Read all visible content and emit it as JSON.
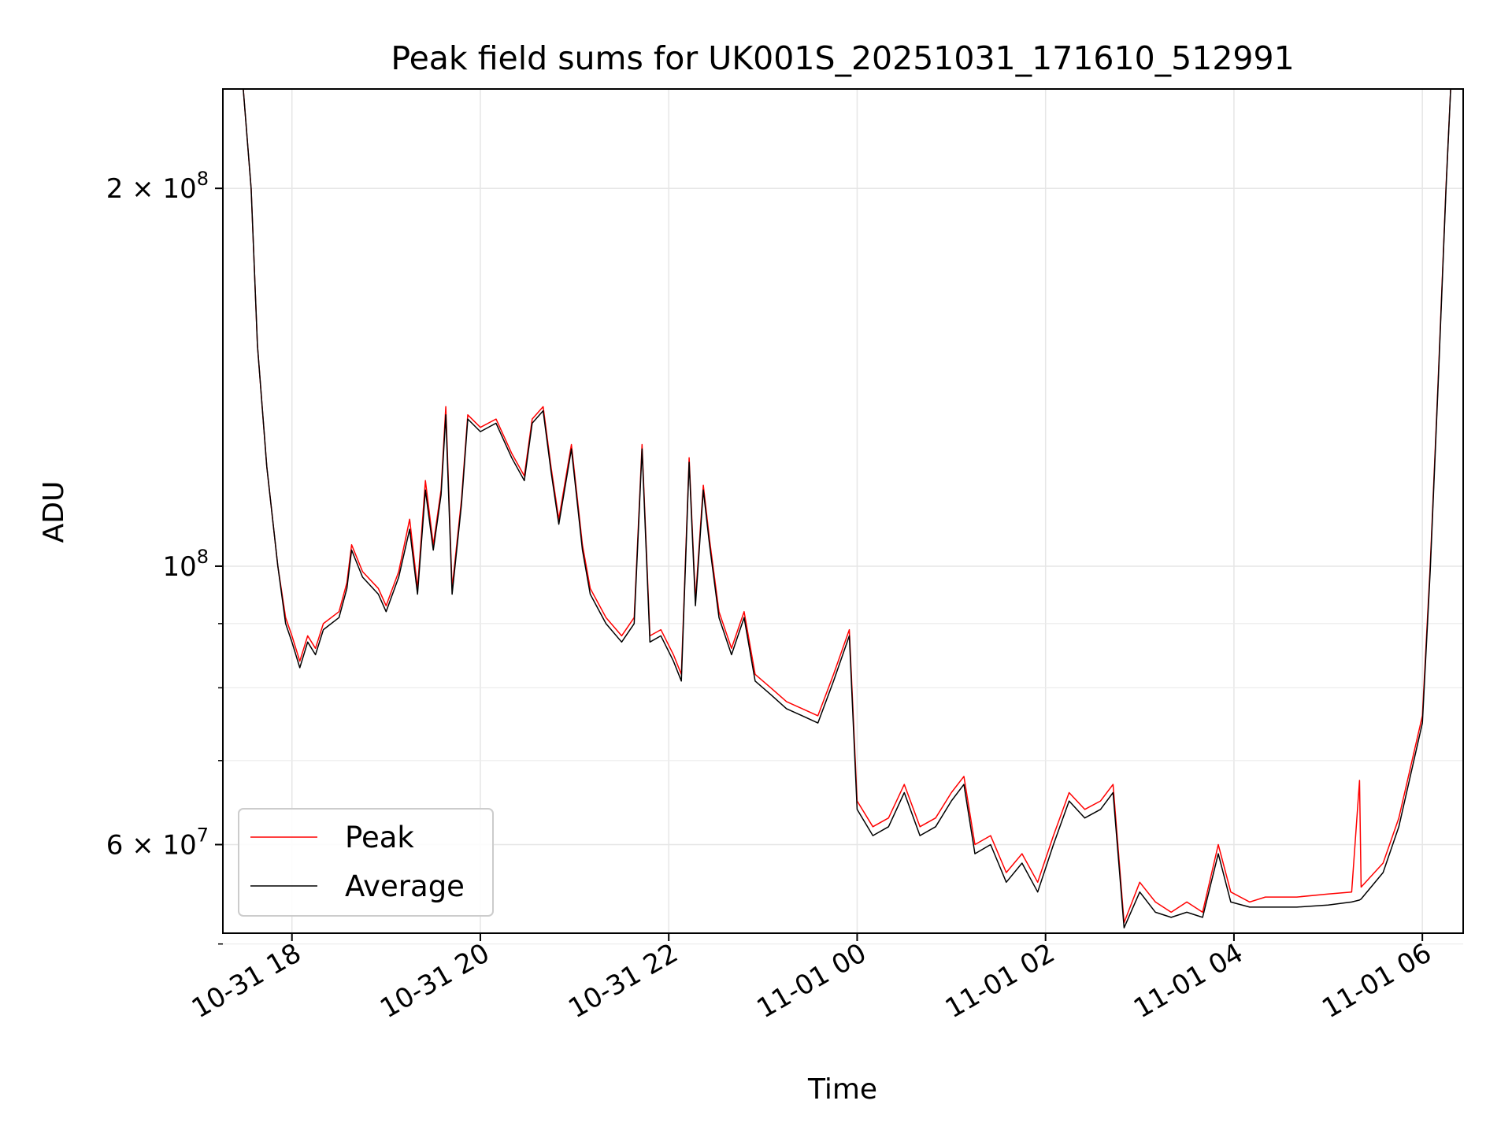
{
  "chart_data": {
    "type": "line",
    "title": "Peak field sums for UK001S_20251031_171610_512991",
    "xlabel": "Time",
    "ylabel": "ADU",
    "y_scale": "log",
    "xlim": [
      "2025-10-31 17:16",
      "2025-11-01 06:26"
    ],
    "ylim": [
      51000000,
      240000000
    ],
    "grid": true,
    "legend_position": "lower-left",
    "x_ticks": [
      {
        "value": "2025-10-31 18:00",
        "label": "10-31 18"
      },
      {
        "value": "2025-10-31 20:00",
        "label": "10-31 20"
      },
      {
        "value": "2025-10-31 22:00",
        "label": "10-31 22"
      },
      {
        "value": "2025-11-01 00:00",
        "label": "11-01 00"
      },
      {
        "value": "2025-11-01 02:00",
        "label": "11-01 02"
      },
      {
        "value": "2025-11-01 04:00",
        "label": "11-01 04"
      },
      {
        "value": "2025-11-01 06:00",
        "label": "11-01 06"
      }
    ],
    "y_major_ticks": [
      {
        "value": 200000000,
        "label_base": "2 × 10",
        "label_exp": "8"
      },
      {
        "value": 100000000,
        "label_base": "10",
        "label_exp": "8"
      },
      {
        "value": 60000000,
        "label_base": "6 × 10",
        "label_exp": "7"
      }
    ],
    "y_minor_ticks": [
      90000000,
      80000000,
      70000000,
      50000000
    ],
    "series": [
      {
        "name": "Peak",
        "color": "#ff0000",
        "points": [
          [
            "2025-10-31 17:16",
            240000000
          ],
          [
            "2025-10-31 17:29",
            240000000
          ],
          [
            "2025-10-31 17:34",
            200000000
          ],
          [
            "2025-10-31 17:38",
            150000000
          ],
          [
            "2025-10-31 17:44",
            120000000
          ],
          [
            "2025-10-31 17:51",
            100000000
          ],
          [
            "2025-10-31 17:56",
            91000000
          ],
          [
            "2025-10-31 18:00",
            88000000
          ],
          [
            "2025-10-31 18:05",
            84000000
          ],
          [
            "2025-10-31 18:10",
            88000000
          ],
          [
            "2025-10-31 18:15",
            86000000
          ],
          [
            "2025-10-31 18:20",
            90000000
          ],
          [
            "2025-10-31 18:30",
            92000000
          ],
          [
            "2025-10-31 18:35",
            97000000
          ],
          [
            "2025-10-31 18:38",
            104000000
          ],
          [
            "2025-10-31 18:45",
            99000000
          ],
          [
            "2025-10-31 18:55",
            96000000
          ],
          [
            "2025-10-31 19:00",
            93000000
          ],
          [
            "2025-10-31 19:08",
            99000000
          ],
          [
            "2025-10-31 19:15",
            109000000
          ],
          [
            "2025-10-31 19:20",
            96000000
          ],
          [
            "2025-10-31 19:25",
            117000000
          ],
          [
            "2025-10-31 19:30",
            104000000
          ],
          [
            "2025-10-31 19:35",
            115000000
          ],
          [
            "2025-10-31 19:38",
            134000000
          ],
          [
            "2025-10-31 19:42",
            96000000
          ],
          [
            "2025-10-31 19:48",
            113000000
          ],
          [
            "2025-10-31 19:52",
            132000000
          ],
          [
            "2025-10-31 20:00",
            129000000
          ],
          [
            "2025-10-31 20:10",
            131000000
          ],
          [
            "2025-10-31 20:20",
            123000000
          ],
          [
            "2025-10-31 20:28",
            118000000
          ],
          [
            "2025-10-31 20:33",
            131000000
          ],
          [
            "2025-10-31 20:40",
            134000000
          ],
          [
            "2025-10-31 20:45",
            120000000
          ],
          [
            "2025-10-31 20:50",
            109000000
          ],
          [
            "2025-10-31 20:58",
            125000000
          ],
          [
            "2025-10-31 21:05",
            104000000
          ],
          [
            "2025-10-31 21:10",
            96000000
          ],
          [
            "2025-10-31 21:20",
            91000000
          ],
          [
            "2025-10-31 21:30",
            88000000
          ],
          [
            "2025-10-31 21:38",
            91000000
          ],
          [
            "2025-10-31 21:43",
            125000000
          ],
          [
            "2025-10-31 21:48",
            88000000
          ],
          [
            "2025-10-31 21:55",
            89000000
          ],
          [
            "2025-10-31 22:03",
            85000000
          ],
          [
            "2025-10-31 22:08",
            82000000
          ],
          [
            "2025-10-31 22:13",
            122000000
          ],
          [
            "2025-10-31 22:17",
            94000000
          ],
          [
            "2025-10-31 22:22",
            116000000
          ],
          [
            "2025-10-31 22:26",
            105000000
          ],
          [
            "2025-10-31 22:32",
            92000000
          ],
          [
            "2025-10-31 22:40",
            86000000
          ],
          [
            "2025-10-31 22:48",
            92000000
          ],
          [
            "2025-10-31 22:55",
            82000000
          ],
          [
            "2025-10-31 23:05",
            80000000
          ],
          [
            "2025-10-31 23:15",
            78000000
          ],
          [
            "2025-10-31 23:25",
            77000000
          ],
          [
            "2025-10-31 23:35",
            76000000
          ],
          [
            "2025-10-31 23:45",
            82000000
          ],
          [
            "2025-10-31 23:55",
            89000000
          ],
          [
            "2025-11-01 00:00",
            65000000
          ],
          [
            "2025-11-01 00:10",
            62000000
          ],
          [
            "2025-11-01 00:20",
            63000000
          ],
          [
            "2025-11-01 00:30",
            67000000
          ],
          [
            "2025-11-01 00:40",
            62000000
          ],
          [
            "2025-11-01 00:50",
            63000000
          ],
          [
            "2025-11-01 01:00",
            66000000
          ],
          [
            "2025-11-01 01:08",
            68000000
          ],
          [
            "2025-11-01 01:15",
            60000000
          ],
          [
            "2025-11-01 01:25",
            61000000
          ],
          [
            "2025-11-01 01:35",
            57000000
          ],
          [
            "2025-11-01 01:45",
            59000000
          ],
          [
            "2025-11-01 01:55",
            56000000
          ],
          [
            "2025-11-01 02:05",
            61000000
          ],
          [
            "2025-11-01 02:15",
            66000000
          ],
          [
            "2025-11-01 02:25",
            64000000
          ],
          [
            "2025-11-01 02:35",
            65000000
          ],
          [
            "2025-11-01 02:43",
            67000000
          ],
          [
            "2025-11-01 02:50",
            52000000
          ],
          [
            "2025-11-01 03:00",
            56000000
          ],
          [
            "2025-11-01 03:10",
            54000000
          ],
          [
            "2025-11-01 03:20",
            53000000
          ],
          [
            "2025-11-01 03:30",
            54000000
          ],
          [
            "2025-11-01 03:40",
            53000000
          ],
          [
            "2025-11-01 03:50",
            60000000
          ],
          [
            "2025-11-01 03:58",
            55000000
          ],
          [
            "2025-11-01 04:10",
            54000000
          ],
          [
            "2025-11-01 04:20",
            54500000
          ],
          [
            "2025-11-01 04:40",
            54500000
          ],
          [
            "2025-11-01 05:00",
            54800000
          ],
          [
            "2025-11-01 05:15",
            55000000
          ],
          [
            "2025-11-01 05:20",
            67500000
          ],
          [
            "2025-11-01 05:21",
            55500000
          ],
          [
            "2025-11-01 05:35",
            58000000
          ],
          [
            "2025-11-01 05:45",
            63000000
          ],
          [
            "2025-11-01 06:00",
            76000000
          ],
          [
            "2025-11-01 06:05",
            100000000
          ],
          [
            "2025-11-01 06:10",
            140000000
          ],
          [
            "2025-11-01 06:15",
            200000000
          ],
          [
            "2025-11-01 06:18",
            240000000
          ],
          [
            "2025-11-01 06:26",
            240000000
          ]
        ]
      },
      {
        "name": "Average",
        "color": "#000000",
        "points": [
          [
            "2025-10-31 17:16",
            240000000
          ],
          [
            "2025-10-31 17:29",
            240000000
          ],
          [
            "2025-10-31 17:34",
            200000000
          ],
          [
            "2025-10-31 17:38",
            150000000
          ],
          [
            "2025-10-31 17:44",
            120000000
          ],
          [
            "2025-10-31 17:51",
            100000000
          ],
          [
            "2025-10-31 17:56",
            90000000
          ],
          [
            "2025-10-31 18:00",
            87000000
          ],
          [
            "2025-10-31 18:05",
            83000000
          ],
          [
            "2025-10-31 18:10",
            87000000
          ],
          [
            "2025-10-31 18:15",
            85000000
          ],
          [
            "2025-10-31 18:20",
            89000000
          ],
          [
            "2025-10-31 18:30",
            91000000
          ],
          [
            "2025-10-31 18:35",
            96000000
          ],
          [
            "2025-10-31 18:38",
            103000000
          ],
          [
            "2025-10-31 18:45",
            98000000
          ],
          [
            "2025-10-31 18:55",
            95000000
          ],
          [
            "2025-10-31 19:00",
            92000000
          ],
          [
            "2025-10-31 19:08",
            98000000
          ],
          [
            "2025-10-31 19:15",
            107000000
          ],
          [
            "2025-10-31 19:20",
            95000000
          ],
          [
            "2025-10-31 19:25",
            115000000
          ],
          [
            "2025-10-31 19:30",
            103000000
          ],
          [
            "2025-10-31 19:35",
            114000000
          ],
          [
            "2025-10-31 19:38",
            132000000
          ],
          [
            "2025-10-31 19:42",
            95000000
          ],
          [
            "2025-10-31 19:48",
            112000000
          ],
          [
            "2025-10-31 19:52",
            131000000
          ],
          [
            "2025-10-31 20:00",
            128000000
          ],
          [
            "2025-10-31 20:10",
            130000000
          ],
          [
            "2025-10-31 20:20",
            122000000
          ],
          [
            "2025-10-31 20:28",
            117000000
          ],
          [
            "2025-10-31 20:33",
            130000000
          ],
          [
            "2025-10-31 20:40",
            133000000
          ],
          [
            "2025-10-31 20:45",
            119000000
          ],
          [
            "2025-10-31 20:50",
            108000000
          ],
          [
            "2025-10-31 20:58",
            124000000
          ],
          [
            "2025-10-31 21:05",
            103000000
          ],
          [
            "2025-10-31 21:10",
            95000000
          ],
          [
            "2025-10-31 21:20",
            90000000
          ],
          [
            "2025-10-31 21:30",
            87000000
          ],
          [
            "2025-10-31 21:38",
            90000000
          ],
          [
            "2025-10-31 21:43",
            124000000
          ],
          [
            "2025-10-31 21:48",
            87000000
          ],
          [
            "2025-10-31 21:55",
            88000000
          ],
          [
            "2025-10-31 22:03",
            84000000
          ],
          [
            "2025-10-31 22:08",
            81000000
          ],
          [
            "2025-10-31 22:13",
            121000000
          ],
          [
            "2025-10-31 22:17",
            93000000
          ],
          [
            "2025-10-31 22:22",
            115000000
          ],
          [
            "2025-10-31 22:26",
            104000000
          ],
          [
            "2025-10-31 22:32",
            91000000
          ],
          [
            "2025-10-31 22:40",
            85000000
          ],
          [
            "2025-10-31 22:48",
            91000000
          ],
          [
            "2025-10-31 22:55",
            81000000
          ],
          [
            "2025-10-31 23:05",
            79000000
          ],
          [
            "2025-10-31 23:15",
            77000000
          ],
          [
            "2025-10-31 23:25",
            76000000
          ],
          [
            "2025-10-31 23:35",
            75000000
          ],
          [
            "2025-10-31 23:45",
            81000000
          ],
          [
            "2025-10-31 23:55",
            88000000
          ],
          [
            "2025-11-01 00:00",
            64000000
          ],
          [
            "2025-11-01 00:10",
            61000000
          ],
          [
            "2025-11-01 00:20",
            62000000
          ],
          [
            "2025-11-01 00:30",
            66000000
          ],
          [
            "2025-11-01 00:40",
            61000000
          ],
          [
            "2025-11-01 00:50",
            62000000
          ],
          [
            "2025-11-01 01:00",
            65000000
          ],
          [
            "2025-11-01 01:08",
            67000000
          ],
          [
            "2025-11-01 01:15",
            59000000
          ],
          [
            "2025-11-01 01:25",
            60000000
          ],
          [
            "2025-11-01 01:35",
            56000000
          ],
          [
            "2025-11-01 01:45",
            58000000
          ],
          [
            "2025-11-01 01:55",
            55000000
          ],
          [
            "2025-11-01 02:05",
            60000000
          ],
          [
            "2025-11-01 02:15",
            65000000
          ],
          [
            "2025-11-01 02:25",
            63000000
          ],
          [
            "2025-11-01 02:35",
            64000000
          ],
          [
            "2025-11-01 02:43",
            66000000
          ],
          [
            "2025-11-01 02:50",
            51500000
          ],
          [
            "2025-11-01 03:00",
            55000000
          ],
          [
            "2025-11-01 03:10",
            53000000
          ],
          [
            "2025-11-01 03:20",
            52500000
          ],
          [
            "2025-11-01 03:30",
            53000000
          ],
          [
            "2025-11-01 03:40",
            52500000
          ],
          [
            "2025-11-01 03:50",
            59000000
          ],
          [
            "2025-11-01 03:58",
            54000000
          ],
          [
            "2025-11-01 04:10",
            53500000
          ],
          [
            "2025-11-01 04:20",
            53500000
          ],
          [
            "2025-11-01 04:40",
            53500000
          ],
          [
            "2025-11-01 05:00",
            53700000
          ],
          [
            "2025-11-01 05:15",
            54000000
          ],
          [
            "2025-11-01 05:20",
            54200000
          ],
          [
            "2025-11-01 05:21",
            54300000
          ],
          [
            "2025-11-01 05:35",
            57000000
          ],
          [
            "2025-11-01 05:45",
            62000000
          ],
          [
            "2025-11-01 06:00",
            75000000
          ],
          [
            "2025-11-01 06:05",
            99000000
          ],
          [
            "2025-11-01 06:10",
            139000000
          ],
          [
            "2025-11-01 06:15",
            199000000
          ],
          [
            "2025-11-01 06:18",
            240000000
          ],
          [
            "2025-11-01 06:26",
            240000000
          ]
        ]
      }
    ]
  }
}
